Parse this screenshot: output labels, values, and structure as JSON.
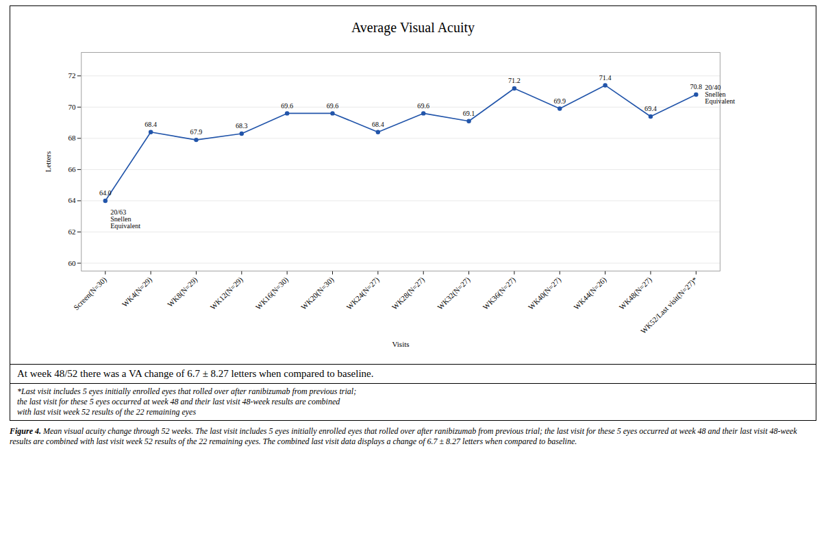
{
  "chart_data": {
    "type": "line",
    "title": "Average  Visual Acuity",
    "xlabel": "Visits",
    "ylabel": "Letters",
    "categories": [
      "Screen(N=30)",
      "WK4(N=29)",
      "WK8(N=29)",
      "WK12(N=29)",
      "WK16(N=30)",
      "WK20(N=30)",
      "WK24(N=27)",
      "WK28(N=27)",
      "WK32(N=27)",
      "WK36(N=27)",
      "WK40(N=27)",
      "WK44(N=26)",
      "WK48(N=27)",
      "WK52/Last visit(N=27)*"
    ],
    "values": [
      64.0,
      68.4,
      67.9,
      68.3,
      69.6,
      69.6,
      68.4,
      69.6,
      69.1,
      71.2,
      69.9,
      71.4,
      69.4,
      70.8
    ],
    "value_labels": [
      "64.0",
      "68.4",
      "67.9",
      "68.3",
      "69.6",
      "69.6",
      "68.4",
      "69.6",
      "69.1",
      "71.2",
      "69.9",
      "71.4",
      "69.4",
      "70.8"
    ],
    "ylim": [
      59.5,
      73.5
    ],
    "yticks": [
      60,
      62,
      64,
      66,
      68,
      70,
      72
    ],
    "color": "#2255aa",
    "marker": "circle",
    "grid": true,
    "data_labels": true,
    "annotations": [
      "20/63\nSnellen\nEquivalent",
      "20/40\nSnellen\nEquivalent"
    ],
    "notes": [
      "At week 48/52 there was a VA change of 6.7 ± 8.27 letters when compared to baseline.",
      "*Last visit includes 5 eyes initially enrolled eyes that rolled over after ranibizumab from previous trial;\nthe last visit for these 5 eyes occurred at week 48 and their last visit 48-week results are combined\nwith last visit week 52 results of the 22 remaining eyes"
    ],
    "caption_label": "Figure 4.",
    "caption": "Mean visual acuity change through 52 weeks. The last visit includes 5 eyes initially enrolled eyes that rolled over after ranibizumab from previous trial; the last visit for these 5 eyes occurred at week 48 and their last visit 48-week results are combined with last visit week 52 results of the 22 remaining eyes. The combined last visit data displays a change of 6.7 ± 8.27 letters when compared to baseline."
  }
}
